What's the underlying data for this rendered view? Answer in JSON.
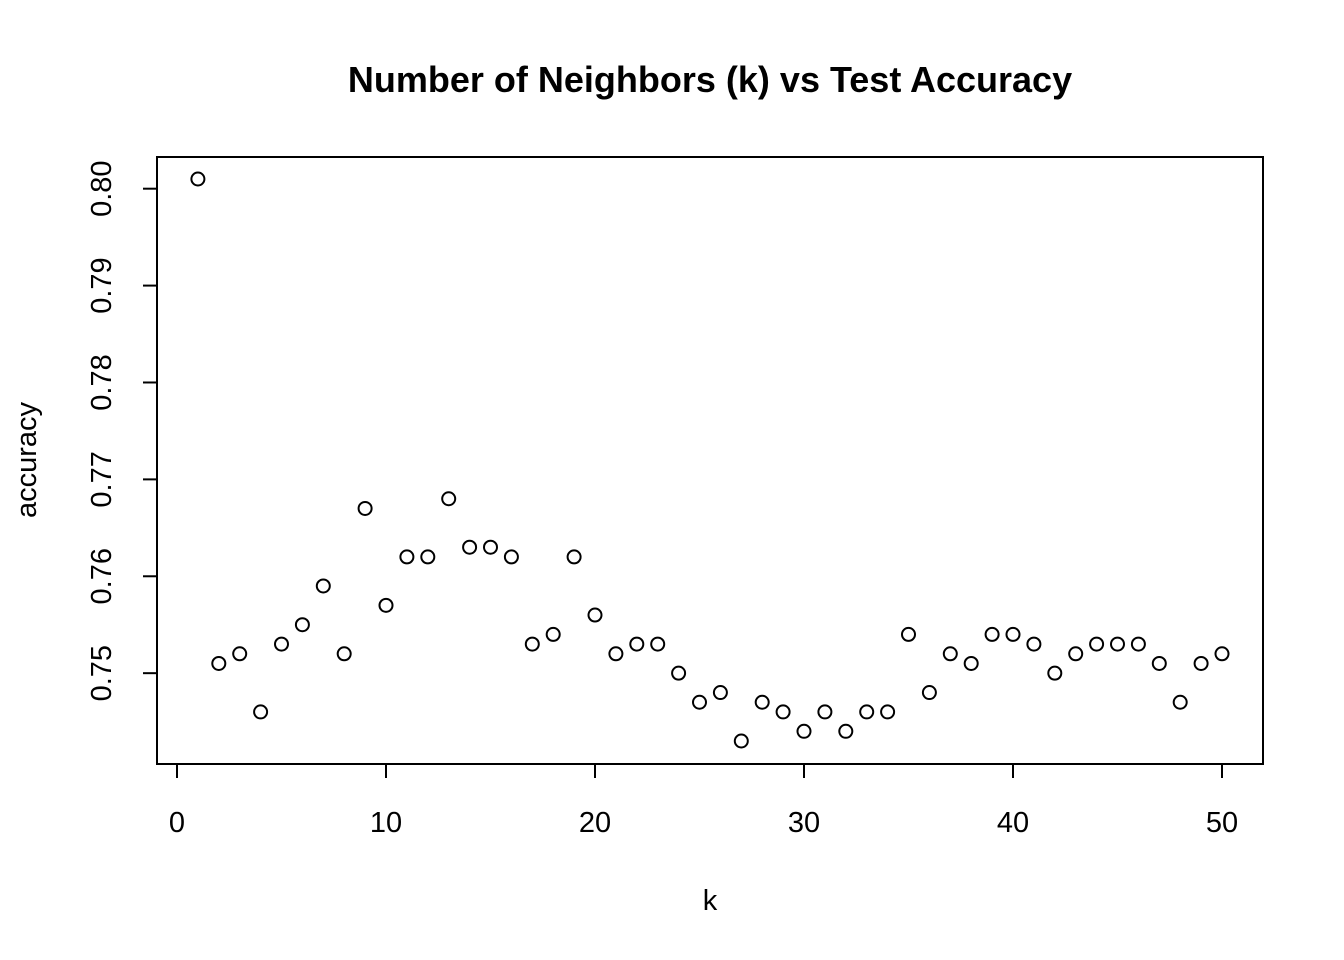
{
  "chart_data": {
    "type": "scatter",
    "title": "Number of Neighbors (k) vs Test Accuracy",
    "xlabel": "k",
    "ylabel": "accuracy",
    "xlim": [
      0,
      50
    ],
    "ylim": [
      0.743,
      0.801
    ],
    "x_ticks": [
      0,
      10,
      20,
      30,
      40,
      50
    ],
    "x_tick_labels": [
      "0",
      "10",
      "20",
      "30",
      "40",
      "50"
    ],
    "y_ticks": [
      0.75,
      0.76,
      0.77,
      0.78,
      0.79,
      0.8
    ],
    "y_tick_labels": [
      "0.75",
      "0.76",
      "0.77",
      "0.78",
      "0.79",
      "0.80"
    ],
    "grid": false,
    "legend": "none",
    "marker": "open-circle",
    "color": "#000000",
    "series": [
      {
        "x": [
          1,
          2,
          3,
          4,
          5,
          6,
          7,
          8,
          9,
          10,
          11,
          12,
          13,
          14,
          15,
          16,
          17,
          18,
          19,
          20,
          21,
          22,
          23,
          24,
          25,
          26,
          27,
          28,
          29,
          30,
          31,
          32,
          33,
          34,
          35,
          36,
          37,
          38,
          39,
          40,
          41,
          42,
          43,
          44,
          45,
          46,
          47,
          48,
          49,
          50
        ],
        "values": [
          0.801,
          0.751,
          0.752,
          0.746,
          0.753,
          0.755,
          0.759,
          0.752,
          0.767,
          0.757,
          0.762,
          0.762,
          0.768,
          0.763,
          0.763,
          0.762,
          0.753,
          0.754,
          0.762,
          0.756,
          0.752,
          0.753,
          0.753,
          0.75,
          0.747,
          0.748,
          0.743,
          0.747,
          0.746,
          0.744,
          0.746,
          0.744,
          0.746,
          0.746,
          0.754,
          0.748,
          0.752,
          0.751,
          0.754,
          0.754,
          0.753,
          0.75,
          0.752,
          0.753,
          0.753,
          0.753,
          0.751,
          0.747,
          0.751,
          0.752
        ]
      }
    ]
  }
}
